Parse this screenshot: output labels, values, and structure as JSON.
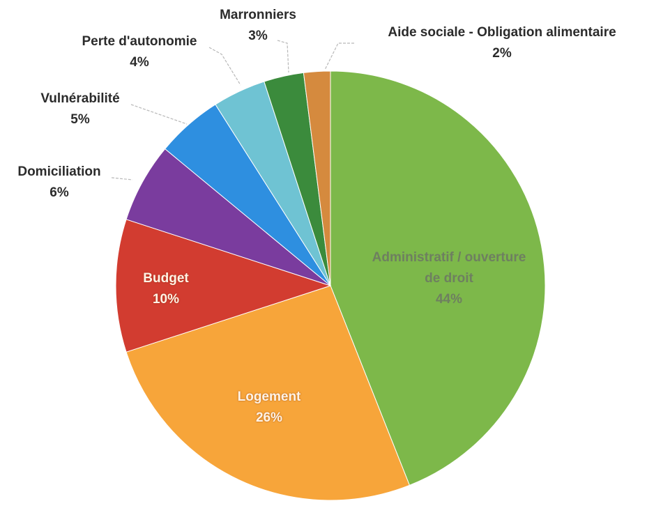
{
  "chart_data": {
    "type": "pie",
    "categories": [
      "Administratif / ouverture de droit",
      "Logement",
      "Budget",
      "Domiciliation",
      "Vulnérabilité",
      "Perte d'autonomie",
      "Marronniers",
      "Aide sociale - Obligation alimentaire"
    ],
    "values": [
      44,
      26,
      10,
      6,
      5,
      4,
      3,
      2
    ],
    "value_labels": [
      "44%",
      "26%",
      "10%",
      "6%",
      "5%",
      "4%",
      "3%",
      "2%"
    ],
    "colors": [
      "#7db84a",
      "#f7a53a",
      "#d23c30",
      "#7a3c9e",
      "#2e8fe0",
      "#6fc3d3",
      "#3b8b3c",
      "#d58a3e"
    ]
  }
}
